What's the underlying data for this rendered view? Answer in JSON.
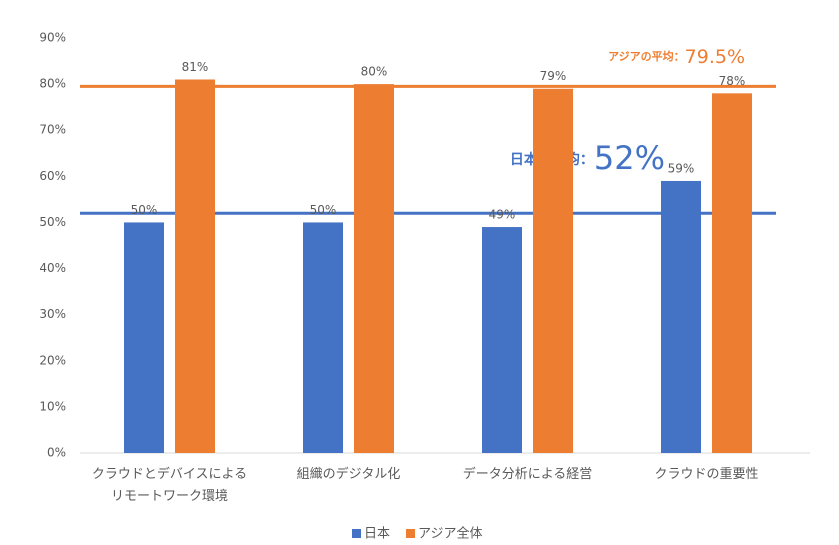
{
  "chart_data": {
    "type": "bar",
    "categories": [
      "クラウドとデバイスによる\nリモートワーク環境",
      "組織のデジタル化",
      "データ分析による経営",
      "クラウドの重要性"
    ],
    "series": [
      {
        "name": "日本",
        "color": "#4472c4",
        "values": [
          50,
          50,
          49,
          59
        ],
        "value_labels": [
          "50%",
          "50%",
          "49%",
          "59%"
        ]
      },
      {
        "name": "アジア全体",
        "color": "#ed7d31",
        "values": [
          81,
          80,
          79,
          78
        ],
        "value_labels": [
          "81%",
          "80%",
          "79%",
          "78%"
        ]
      }
    ],
    "reference_lines": [
      {
        "name": "アジアの平均：",
        "value": 79.5,
        "value_label": "79.5%",
        "color": "#ed7d31"
      },
      {
        "name": "日本の平均：",
        "value": 52,
        "value_label": "52%",
        "color": "#4472c4"
      }
    ],
    "ylim": [
      0,
      90
    ],
    "yticks": [
      {
        "value": 0,
        "label": "0%"
      },
      {
        "value": 10,
        "label": "10%"
      },
      {
        "value": 20,
        "label": "20%"
      },
      {
        "value": 30,
        "label": "30%"
      },
      {
        "value": 40,
        "label": "40%"
      },
      {
        "value": 50,
        "label": "50%"
      },
      {
        "value": 60,
        "label": "60%"
      },
      {
        "value": 70,
        "label": "70%"
      },
      {
        "value": 80,
        "label": "80%"
      },
      {
        "value": 90,
        "label": "90%"
      }
    ],
    "legend": "bottom"
  }
}
